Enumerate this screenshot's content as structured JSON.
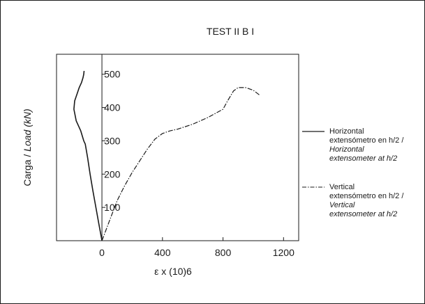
{
  "chart_data": {
    "type": "line",
    "title": "TEST II B I",
    "xlabel": "ε x (10)6",
    "ylabel": {
      "main": "Carga / ",
      "italic": "Load (kN)"
    },
    "xlim": [
      -300,
      1300
    ],
    "ylim": [
      0,
      560
    ],
    "xticks": [
      "0",
      "400",
      "800",
      "1200"
    ],
    "xtick_values": [
      0,
      400,
      800,
      1200
    ],
    "yticks": [
      "100",
      "200",
      "300",
      "400",
      "500"
    ],
    "ytick_values": [
      100,
      200,
      300,
      400,
      500
    ],
    "grid": false,
    "legend_position": "right",
    "series": [
      {
        "name": "Horizontal extensómetro en h/2 / Horizontal extensometer at h/2",
        "legend_lines": [
          {
            "text": "Horizontal",
            "italic": false
          },
          {
            "text": "extensómetro en h/2 /",
            "italic": false
          },
          {
            "text": "Horizontal",
            "italic": true
          },
          {
            "text": "extensometer at h/2",
            "italic": true
          }
        ],
        "style": "solid",
        "color": "#1a1a1a",
        "x": [
          0,
          -20,
          -40,
          -60,
          -78,
          -95,
          -110,
          -120,
          -140,
          -170,
          -185,
          -180,
          -165,
          -150,
          -135,
          -125,
          -120,
          -118
        ],
        "y": [
          0,
          50,
          100,
          150,
          200,
          250,
          290,
          300,
          330,
          360,
          395,
          420,
          440,
          460,
          475,
          490,
          500,
          510
        ]
      },
      {
        "name": "Vertical extensómetro en h/2 / Vertical extensometer at h/2",
        "legend_lines": [
          {
            "text": "Vertical",
            "italic": false
          },
          {
            "text": "extensómetro en h/2 /",
            "italic": false
          },
          {
            "text": "Vertical",
            "italic": true
          },
          {
            "text": "extensometer at h/2",
            "italic": true
          }
        ],
        "style": "dash-dot",
        "color": "#1a1a1a",
        "x": [
          0,
          50,
          100,
          150,
          200,
          250,
          300,
          350,
          400,
          450,
          500,
          600,
          700,
          800,
          830,
          850,
          870,
          900,
          950,
          1000,
          1040
        ],
        "y": [
          0,
          60,
          120,
          165,
          205,
          240,
          275,
          305,
          322,
          330,
          335,
          350,
          370,
          395,
          420,
          435,
          450,
          460,
          460,
          452,
          438
        ]
      }
    ]
  }
}
